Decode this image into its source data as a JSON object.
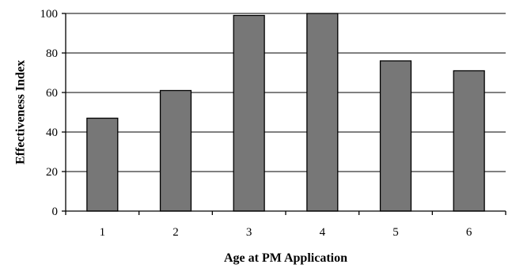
{
  "chart_data": {
    "type": "bar",
    "categories": [
      "1",
      "2",
      "3",
      "4",
      "5",
      "6"
    ],
    "values": [
      47,
      61,
      99,
      100,
      76,
      71
    ],
    "xlabel": "Age at PM Application",
    "ylabel": "Effectiveness Index",
    "ylim": [
      0,
      100
    ],
    "yticks": [
      0,
      20,
      40,
      60,
      80,
      100
    ],
    "grid": true,
    "bar_color": "#777777"
  }
}
